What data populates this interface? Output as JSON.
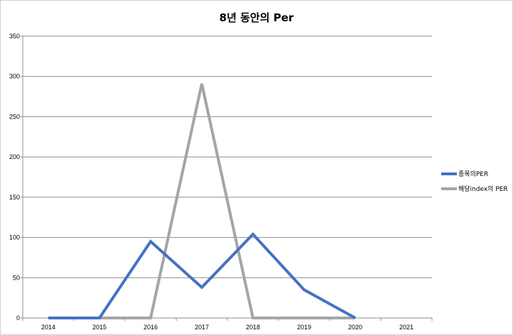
{
  "chart_data": {
    "type": "line",
    "title": "8년 동안의 Per",
    "xlabel": "",
    "ylabel": "",
    "categories": [
      "2014",
      "2015",
      "2016",
      "2017",
      "2018",
      "2019",
      "2020",
      "2021"
    ],
    "ylim": [
      0,
      350
    ],
    "yticks": [
      0,
      50,
      100,
      150,
      200,
      250,
      300,
      350
    ],
    "grid": true,
    "legend_position": "right",
    "series": [
      {
        "name": "종목의PER",
        "color": "#4472C4",
        "values": [
          0,
          0,
          95,
          38,
          104,
          35,
          0,
          null
        ]
      },
      {
        "name": "해당index의 PER",
        "color": "#A5A5A5",
        "values": [
          0,
          0,
          0,
          291,
          0,
          0,
          0,
          null
        ]
      }
    ]
  }
}
